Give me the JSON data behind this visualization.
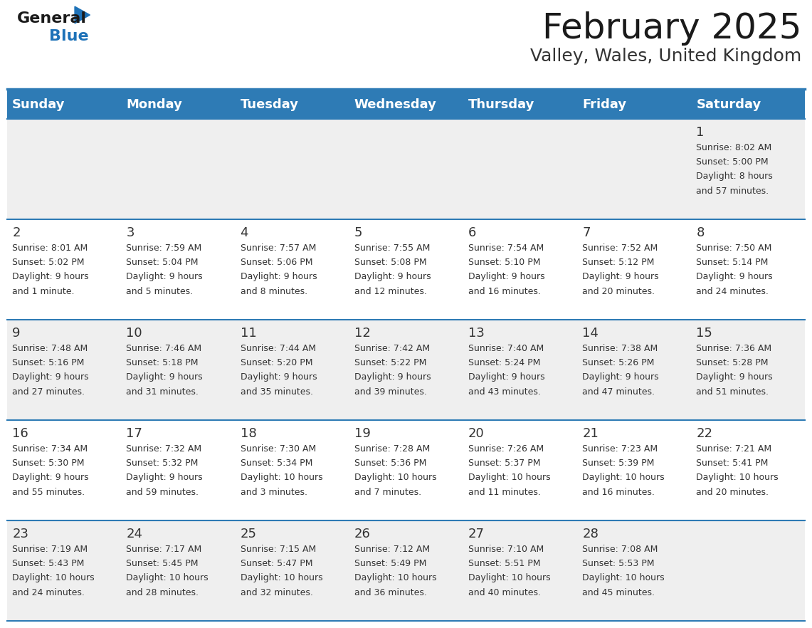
{
  "title": "February 2025",
  "subtitle": "Valley, Wales, United Kingdom",
  "header_color": "#2E7BB5",
  "header_text_color": "#FFFFFF",
  "background_color": "#FFFFFF",
  "line_color": "#2E7BB5",
  "text_color": "#333333",
  "days_of_week": [
    "Sunday",
    "Monday",
    "Tuesday",
    "Wednesday",
    "Thursday",
    "Friday",
    "Saturday"
  ],
  "calendar_data": [
    [
      null,
      null,
      null,
      null,
      null,
      null,
      {
        "day": "1",
        "sunrise": "8:02 AM",
        "sunset": "5:00 PM",
        "daylight_line1": "Daylight: 8 hours",
        "daylight_line2": "and 57 minutes."
      }
    ],
    [
      {
        "day": "2",
        "sunrise": "8:01 AM",
        "sunset": "5:02 PM",
        "daylight_line1": "Daylight: 9 hours",
        "daylight_line2": "and 1 minute."
      },
      {
        "day": "3",
        "sunrise": "7:59 AM",
        "sunset": "5:04 PM",
        "daylight_line1": "Daylight: 9 hours",
        "daylight_line2": "and 5 minutes."
      },
      {
        "day": "4",
        "sunrise": "7:57 AM",
        "sunset": "5:06 PM",
        "daylight_line1": "Daylight: 9 hours",
        "daylight_line2": "and 8 minutes."
      },
      {
        "day": "5",
        "sunrise": "7:55 AM",
        "sunset": "5:08 PM",
        "daylight_line1": "Daylight: 9 hours",
        "daylight_line2": "and 12 minutes."
      },
      {
        "day": "6",
        "sunrise": "7:54 AM",
        "sunset": "5:10 PM",
        "daylight_line1": "Daylight: 9 hours",
        "daylight_line2": "and 16 minutes."
      },
      {
        "day": "7",
        "sunrise": "7:52 AM",
        "sunset": "5:12 PM",
        "daylight_line1": "Daylight: 9 hours",
        "daylight_line2": "and 20 minutes."
      },
      {
        "day": "8",
        "sunrise": "7:50 AM",
        "sunset": "5:14 PM",
        "daylight_line1": "Daylight: 9 hours",
        "daylight_line2": "and 24 minutes."
      }
    ],
    [
      {
        "day": "9",
        "sunrise": "7:48 AM",
        "sunset": "5:16 PM",
        "daylight_line1": "Daylight: 9 hours",
        "daylight_line2": "and 27 minutes."
      },
      {
        "day": "10",
        "sunrise": "7:46 AM",
        "sunset": "5:18 PM",
        "daylight_line1": "Daylight: 9 hours",
        "daylight_line2": "and 31 minutes."
      },
      {
        "day": "11",
        "sunrise": "7:44 AM",
        "sunset": "5:20 PM",
        "daylight_line1": "Daylight: 9 hours",
        "daylight_line2": "and 35 minutes."
      },
      {
        "day": "12",
        "sunrise": "7:42 AM",
        "sunset": "5:22 PM",
        "daylight_line1": "Daylight: 9 hours",
        "daylight_line2": "and 39 minutes."
      },
      {
        "day": "13",
        "sunrise": "7:40 AM",
        "sunset": "5:24 PM",
        "daylight_line1": "Daylight: 9 hours",
        "daylight_line2": "and 43 minutes."
      },
      {
        "day": "14",
        "sunrise": "7:38 AM",
        "sunset": "5:26 PM",
        "daylight_line1": "Daylight: 9 hours",
        "daylight_line2": "and 47 minutes."
      },
      {
        "day": "15",
        "sunrise": "7:36 AM",
        "sunset": "5:28 PM",
        "daylight_line1": "Daylight: 9 hours",
        "daylight_line2": "and 51 minutes."
      }
    ],
    [
      {
        "day": "16",
        "sunrise": "7:34 AM",
        "sunset": "5:30 PM",
        "daylight_line1": "Daylight: 9 hours",
        "daylight_line2": "and 55 minutes."
      },
      {
        "day": "17",
        "sunrise": "7:32 AM",
        "sunset": "5:32 PM",
        "daylight_line1": "Daylight: 9 hours",
        "daylight_line2": "and 59 minutes."
      },
      {
        "day": "18",
        "sunrise": "7:30 AM",
        "sunset": "5:34 PM",
        "daylight_line1": "Daylight: 10 hours",
        "daylight_line2": "and 3 minutes."
      },
      {
        "day": "19",
        "sunrise": "7:28 AM",
        "sunset": "5:36 PM",
        "daylight_line1": "Daylight: 10 hours",
        "daylight_line2": "and 7 minutes."
      },
      {
        "day": "20",
        "sunrise": "7:26 AM",
        "sunset": "5:37 PM",
        "daylight_line1": "Daylight: 10 hours",
        "daylight_line2": "and 11 minutes."
      },
      {
        "day": "21",
        "sunrise": "7:23 AM",
        "sunset": "5:39 PM",
        "daylight_line1": "Daylight: 10 hours",
        "daylight_line2": "and 16 minutes."
      },
      {
        "day": "22",
        "sunrise": "7:21 AM",
        "sunset": "5:41 PM",
        "daylight_line1": "Daylight: 10 hours",
        "daylight_line2": "and 20 minutes."
      }
    ],
    [
      {
        "day": "23",
        "sunrise": "7:19 AM",
        "sunset": "5:43 PM",
        "daylight_line1": "Daylight: 10 hours",
        "daylight_line2": "and 24 minutes."
      },
      {
        "day": "24",
        "sunrise": "7:17 AM",
        "sunset": "5:45 PM",
        "daylight_line1": "Daylight: 10 hours",
        "daylight_line2": "and 28 minutes."
      },
      {
        "day": "25",
        "sunrise": "7:15 AM",
        "sunset": "5:47 PM",
        "daylight_line1": "Daylight: 10 hours",
        "daylight_line2": "and 32 minutes."
      },
      {
        "day": "26",
        "sunrise": "7:12 AM",
        "sunset": "5:49 PM",
        "daylight_line1": "Daylight: 10 hours",
        "daylight_line2": "and 36 minutes."
      },
      {
        "day": "27",
        "sunrise": "7:10 AM",
        "sunset": "5:51 PM",
        "daylight_line1": "Daylight: 10 hours",
        "daylight_line2": "and 40 minutes."
      },
      {
        "day": "28",
        "sunrise": "7:08 AM",
        "sunset": "5:53 PM",
        "daylight_line1": "Daylight: 10 hours",
        "daylight_line2": "and 45 minutes."
      },
      null
    ]
  ],
  "logo_general_color": "#1a1a1a",
  "logo_blue_color": "#1e72b8",
  "logo_triangle_color": "#1e72b8",
  "title_fontsize": 36,
  "subtitle_fontsize": 18,
  "day_num_fontsize": 13,
  "cell_text_fontsize": 9,
  "header_fontsize": 13
}
